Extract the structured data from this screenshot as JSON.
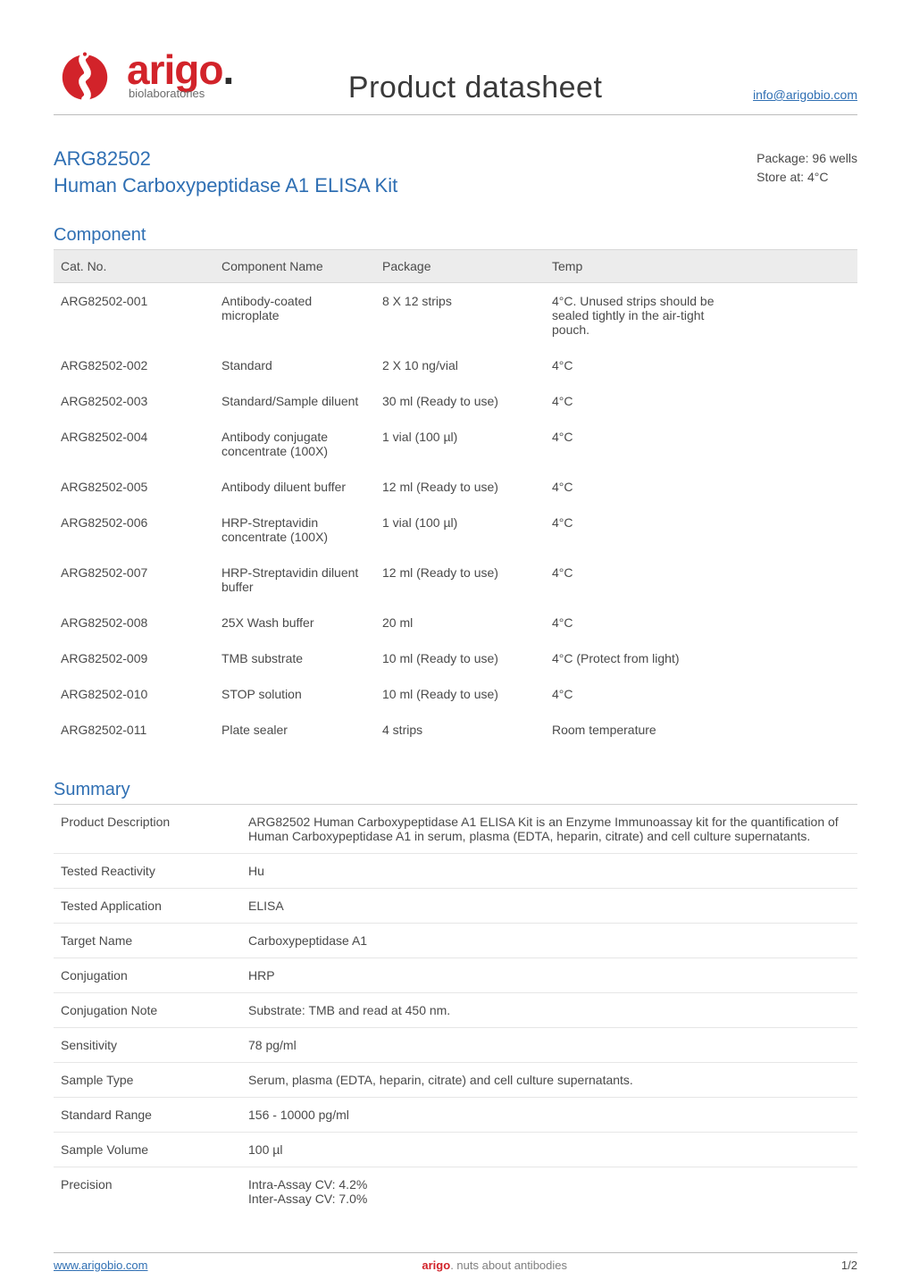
{
  "header": {
    "brand_main": "arigo",
    "brand_dot": ".",
    "brand_sub": "biolaboratories",
    "doc_title": "Product datasheet",
    "email": "info@arigobio.com"
  },
  "product": {
    "sku": "ARG82502",
    "name": "Human Carboxypeptidase A1 ELISA Kit",
    "package_label": "Package:",
    "package_value": "96 wells",
    "store_label": "Store at:",
    "store_value": "4°C"
  },
  "component_section": {
    "heading": "Component",
    "columns": [
      "Cat. No.",
      "Component Name",
      "Package",
      "Temp"
    ],
    "rows": [
      [
        "ARG82502-001",
        "Antibody-coated microplate",
        "8 X 12 strips",
        "4°C. Unused strips should be sealed tightly in the air-tight pouch."
      ],
      [
        "ARG82502-002",
        "Standard",
        "2 X 10 ng/vial",
        "4°C"
      ],
      [
        "ARG82502-003",
        "Standard/Sample diluent",
        "30 ml (Ready to use)",
        "4°C"
      ],
      [
        "ARG82502-004",
        "Antibody conjugate concentrate (100X)",
        "1 vial (100 µl)",
        "4°C"
      ],
      [
        "ARG82502-005",
        "Antibody diluent buffer",
        "12 ml (Ready to use)",
        "4°C"
      ],
      [
        "ARG82502-006",
        "HRP-Streptavidin concentrate (100X)",
        "1 vial (100 µl)",
        "4°C"
      ],
      [
        "ARG82502-007",
        "HRP-Streptavidin diluent buffer",
        "12 ml (Ready to use)",
        "4°C"
      ],
      [
        "ARG82502-008",
        "25X Wash buffer",
        "20 ml",
        "4°C"
      ],
      [
        "ARG82502-009",
        "TMB substrate",
        "10 ml (Ready to use)",
        "4°C (Protect from light)"
      ],
      [
        "ARG82502-010",
        "STOP solution",
        "10 ml (Ready to use)",
        "4°C"
      ],
      [
        "ARG82502-011",
        "Plate sealer",
        "4 strips",
        "Room temperature"
      ]
    ]
  },
  "summary_section": {
    "heading": "Summary",
    "rows": [
      [
        "Product Description",
        "ARG82502 Human Carboxypeptidase A1 ELISA Kit is an Enzyme Immunoassay kit for the quantification of Human Carboxypeptidase A1 in serum, plasma (EDTA, heparin, citrate) and cell culture supernatants."
      ],
      [
        "Tested Reactivity",
        "Hu"
      ],
      [
        "Tested Application",
        "ELISA"
      ],
      [
        "Target Name",
        "Carboxypeptidase A1"
      ],
      [
        "Conjugation",
        "HRP"
      ],
      [
        "Conjugation Note",
        "Substrate: TMB and read at 450 nm."
      ],
      [
        "Sensitivity",
        "78 pg/ml"
      ],
      [
        "Sample Type",
        "Serum, plasma (EDTA, heparin, citrate) and cell culture supernatants."
      ],
      [
        "Standard Range",
        "156 - 10000 pg/ml"
      ],
      [
        "Sample Volume",
        "100 µl"
      ],
      [
        "Precision",
        "Intra-Assay CV: 4.2%\nInter-Assay CV: 7.0%"
      ]
    ]
  },
  "footer": {
    "url": "www.arigobio.com",
    "tag_brand": "arigo",
    "tag_rest": ". nuts about antibodies",
    "page": "1/2"
  },
  "colors": {
    "brand_red": "#d2232a",
    "link_blue": "#2f6fb3",
    "text": "#4a4a4a",
    "hr": "#bcbcbc",
    "thead_bg": "#ececec"
  }
}
